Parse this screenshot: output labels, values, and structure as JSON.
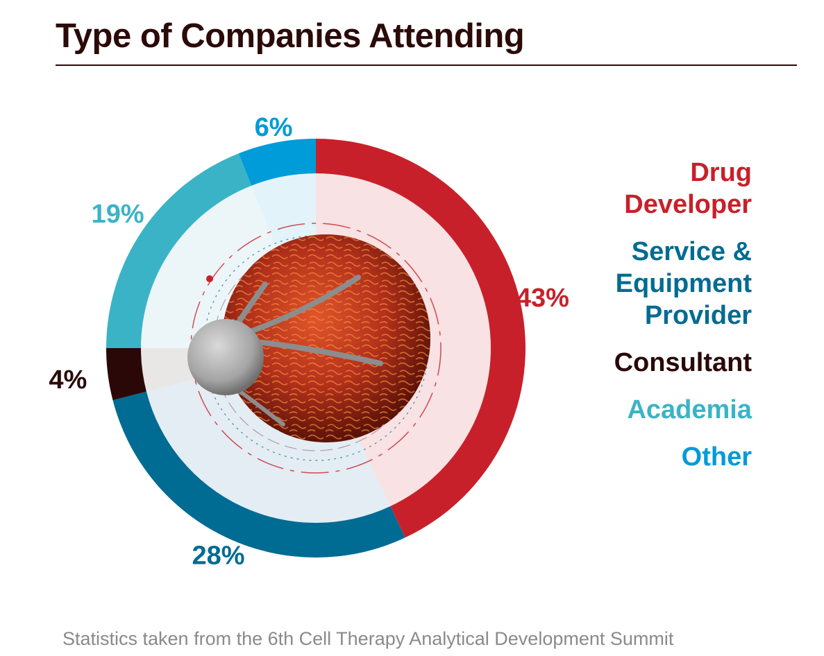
{
  "chart_data": {
    "type": "pie",
    "title": "Type of Companies Attending",
    "categories": [
      "Drug Developer",
      "Service & Equipment Provider",
      "Consultant",
      "Academia",
      "Other"
    ],
    "values": [
      43,
      28,
      4,
      19,
      6
    ],
    "labels": [
      "43%",
      "28%",
      "4%",
      "19%",
      "6%"
    ],
    "colors": [
      "#c8202a",
      "#006b93",
      "#2b0808",
      "#3bb3c6",
      "#009bd9"
    ],
    "inner_colors": [
      "#f8e2e3",
      "#e3edf3",
      "#e9e7e6",
      "#ecf6f8",
      "#e2f3fa"
    ],
    "legend_position": "right",
    "donut": true
  },
  "legend": {
    "items": [
      {
        "label": "Drug\nDeveloper",
        "color": "#c8202a"
      },
      {
        "label": "Service &\nEquipment\nProvider",
        "color": "#006b93"
      },
      {
        "label": "Consultant",
        "color": "#2b0808"
      },
      {
        "label": "Academia",
        "color": "#3bb3c6"
      },
      {
        "label": "Other",
        "color": "#009bd9"
      }
    ]
  },
  "source_note": "Statistics taken from the 6th Cell Therapy Analytical Development Summit"
}
